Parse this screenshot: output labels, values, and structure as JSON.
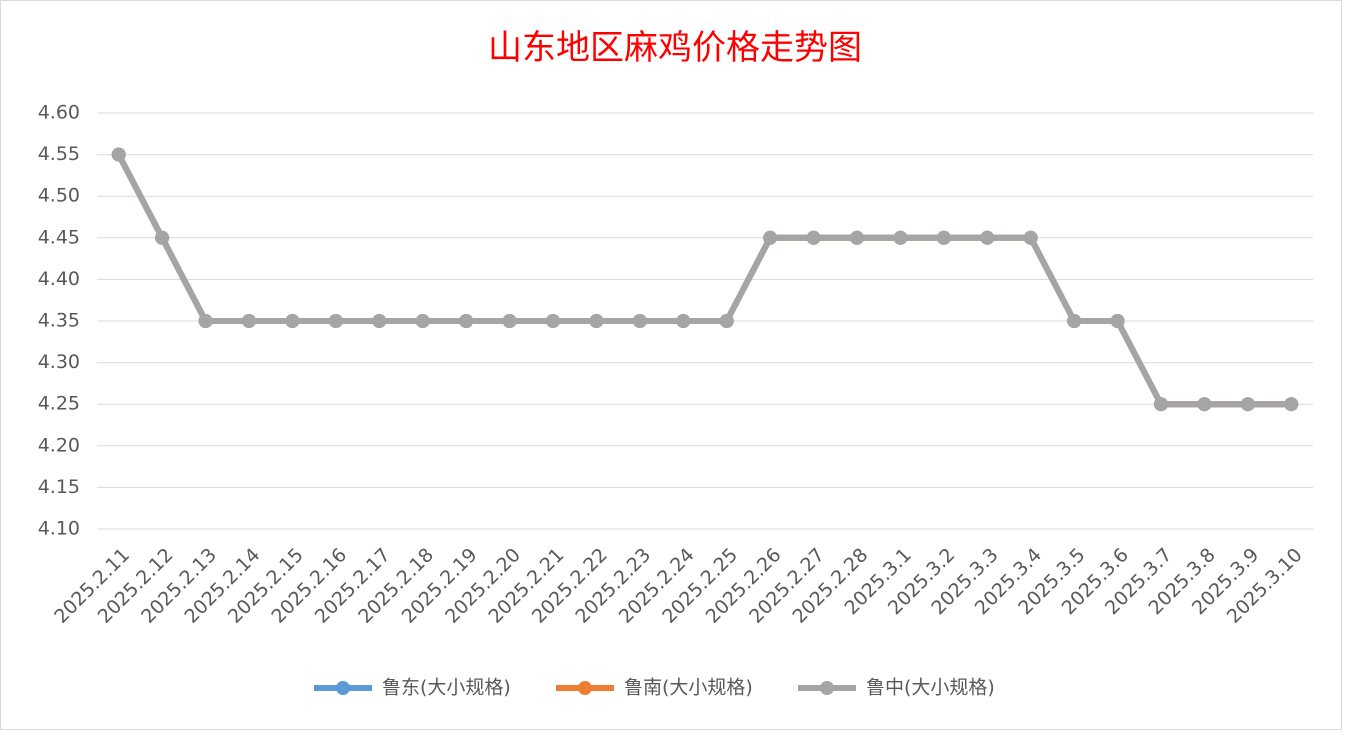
{
  "chart_data": {
    "type": "line",
    "title": "山东地区麻鸡价格走势图",
    "categories": [
      "2025.2.11",
      "2025.2.12",
      "2025.2.13",
      "2025.2.14",
      "2025.2.15",
      "2025.2.16",
      "2025.2.17",
      "2025.2.18",
      "2025.2.19",
      "2025.2.20",
      "2025.2.21",
      "2025.2.22",
      "2025.2.23",
      "2025.2.24",
      "2025.2.25",
      "2025.2.26",
      "2025.2.27",
      "2025.2.28",
      "2025.3.1",
      "2025.3.2",
      "2025.3.3",
      "2025.3.4",
      "2025.3.5",
      "2025.3.6",
      "2025.3.7",
      "2025.3.8",
      "2025.3.9",
      "2025.3.10"
    ],
    "series": [
      {
        "name": "鲁东(大小规格)",
        "color": "#5b9bd5",
        "values": [
          4.55,
          4.45,
          4.35,
          4.35,
          4.35,
          4.35,
          4.35,
          4.35,
          4.35,
          4.35,
          4.35,
          4.35,
          4.35,
          4.35,
          4.35,
          4.45,
          4.45,
          4.45,
          4.45,
          4.45,
          4.45,
          4.45,
          4.35,
          4.35,
          4.25,
          4.25,
          4.25,
          4.25
        ]
      },
      {
        "name": "鲁南(大小规格)",
        "color": "#ed7d31",
        "values": [
          4.55,
          4.45,
          4.35,
          4.35,
          4.35,
          4.35,
          4.35,
          4.35,
          4.35,
          4.35,
          4.35,
          4.35,
          4.35,
          4.35,
          4.35,
          4.45,
          4.45,
          4.45,
          4.45,
          4.45,
          4.45,
          4.45,
          4.35,
          4.35,
          4.25,
          4.25,
          4.25,
          4.25
        ]
      },
      {
        "name": "鲁中(大小规格)",
        "color": "#a5a5a5",
        "values": [
          4.55,
          4.45,
          4.35,
          4.35,
          4.35,
          4.35,
          4.35,
          4.35,
          4.35,
          4.35,
          4.35,
          4.35,
          4.35,
          4.35,
          4.35,
          4.45,
          4.45,
          4.45,
          4.45,
          4.45,
          4.45,
          4.45,
          4.35,
          4.35,
          4.25,
          4.25,
          4.25,
          4.25
        ]
      }
    ],
    "ylim": [
      4.1,
      4.6
    ],
    "yticks": [
      {
        "value": 4.1,
        "label": "4.10"
      },
      4.15,
      {
        "value": 4.2,
        "label": "4.20"
      },
      4.25,
      {
        "value": 4.3,
        "label": "4.30"
      },
      4.35,
      {
        "value": 4.4,
        "label": "4.40"
      },
      4.45,
      {
        "value": 4.5,
        "label": "4.50"
      },
      4.55,
      {
        "value": 4.6,
        "label": "4.60"
      }
    ],
    "grid": true,
    "legend": "bottom"
  }
}
